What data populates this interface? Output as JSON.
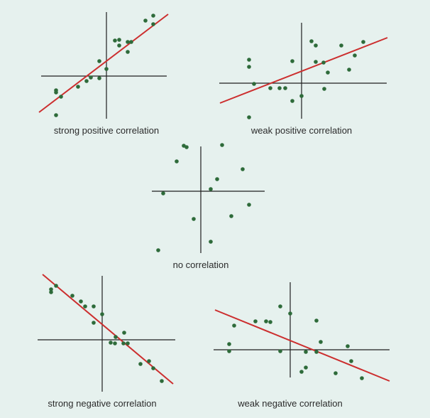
{
  "colors": {
    "background": "#e6f1ee",
    "axis": "#1f1f1f",
    "point": "#2e6b3a",
    "fit_line": "#cc2e2e",
    "caption": "#2b2b2b"
  },
  "panels": [
    {
      "id": "strong-positive",
      "caption": "strong positive correlation",
      "points": [
        [
          -71,
          -23
        ],
        [
          -71,
          -20
        ],
        [
          -64,
          -29
        ],
        [
          -71,
          -55
        ],
        [
          -40,
          -15
        ],
        [
          -28,
          -7
        ],
        [
          -22,
          -2
        ],
        [
          -10,
          -3
        ],
        [
          -10,
          21
        ],
        [
          0,
          10
        ],
        [
          12,
          50
        ],
        [
          18,
          51
        ],
        [
          18,
          43
        ],
        [
          30,
          48
        ],
        [
          35,
          48
        ],
        [
          30,
          34
        ],
        [
          66,
          73
        ],
        [
          55,
          78
        ],
        [
          66,
          85
        ]
      ],
      "fit": [
        [
          -95,
          -51
        ],
        [
          87,
          87
        ]
      ]
    },
    {
      "id": "weak-positive",
      "caption": "weak positive correlation",
      "points": [
        [
          -74,
          -48
        ],
        [
          -74,
          23
        ],
        [
          -74,
          33
        ],
        [
          -67,
          -1
        ],
        [
          -44,
          -7
        ],
        [
          -31,
          -7
        ],
        [
          -23,
          -7
        ],
        [
          -13,
          -25
        ],
        [
          0,
          -18
        ],
        [
          -13,
          31
        ],
        [
          14,
          59
        ],
        [
          20,
          53
        ],
        [
          20,
          30
        ],
        [
          31,
          29
        ],
        [
          37,
          15
        ],
        [
          32,
          -8
        ],
        [
          56,
          53
        ],
        [
          67,
          19
        ],
        [
          75,
          39
        ],
        [
          87,
          58
        ]
      ],
      "fit": [
        [
          -115,
          -28
        ],
        [
          121,
          64
        ]
      ]
    },
    {
      "id": "no-correlation",
      "caption": "no correlation",
      "points": [
        [
          -24,
          64
        ],
        [
          -20,
          62
        ],
        [
          -34,
          42
        ],
        [
          -53,
          -3
        ],
        [
          14,
          3
        ],
        [
          23,
          17
        ],
        [
          30,
          65
        ],
        [
          59,
          31
        ],
        [
          43,
          -35
        ],
        [
          68,
          -19
        ],
        [
          -10,
          -39
        ],
        [
          14,
          -71
        ],
        [
          -60,
          -83
        ]
      ],
      "fit": null
    },
    {
      "id": "strong-negative",
      "caption": "strong negative correlation",
      "points": [
        [
          -72,
          71
        ],
        [
          -72,
          67
        ],
        [
          -65,
          76
        ],
        [
          -42,
          62
        ],
        [
          -30,
          54
        ],
        [
          -24,
          47
        ],
        [
          -12,
          47
        ],
        [
          -12,
          24
        ],
        [
          0,
          36
        ],
        [
          12,
          -4
        ],
        [
          18,
          -5
        ],
        [
          19,
          4
        ],
        [
          30,
          -5
        ],
        [
          36,
          -5
        ],
        [
          31,
          10
        ],
        [
          54,
          -34
        ],
        [
          66,
          -30
        ],
        [
          72,
          -40
        ],
        [
          84,
          -58
        ]
      ],
      "fit": [
        [
          -84,
          92
        ],
        [
          100,
          -62
        ]
      ]
    },
    {
      "id": "weak-negative",
      "caption": "weak negative correlation",
      "points": [
        [
          -79,
          34
        ],
        [
          -86,
          -2
        ],
        [
          -86,
          8
        ],
        [
          -49,
          40
        ],
        [
          -34,
          40
        ],
        [
          -28,
          39
        ],
        [
          -14,
          61
        ],
        [
          -14,
          -2
        ],
        [
          0,
          51
        ],
        [
          37,
          41
        ],
        [
          22,
          -3
        ],
        [
          16,
          -31
        ],
        [
          22,
          -25
        ],
        [
          37,
          -3
        ],
        [
          43,
          11
        ],
        [
          64,
          -33
        ],
        [
          81,
          5
        ],
        [
          86,
          -16
        ],
        [
          101,
          -40
        ]
      ],
      "fit": [
        [
          -106,
          56
        ],
        [
          140,
          -44
        ]
      ]
    }
  ]
}
